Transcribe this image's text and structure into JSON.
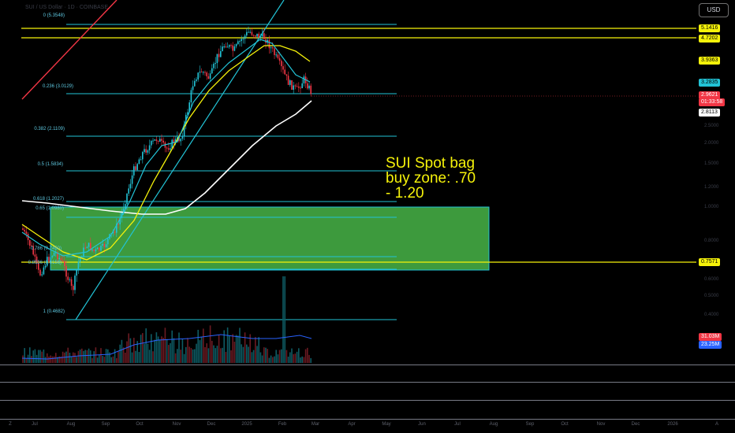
{
  "header": {
    "symbol_line": "SUI / US Dollar · 1D · COINBASE",
    "currency_button": "USD"
  },
  "annotation": {
    "line1": "SUI Spot bag",
    "line2": "buy zone: .70",
    "line3": "- 1.20"
  },
  "fib_labels": [
    {
      "label": "0 (5.3548)",
      "price": 5.3548
    },
    {
      "label": "0.236 (3.0129)",
      "price": 3.0129
    },
    {
      "label": "0.382 (2.1109)",
      "price": 2.1109
    },
    {
      "label": "0.5 (1.5834)",
      "price": 1.5834
    },
    {
      "label": "0.618 (1.2027)",
      "price": 1.2027
    },
    {
      "label": "0.65 (1.0980)",
      "price": 1.098
    },
    {
      "label": "0.786 (0.7450)",
      "price": 0.745
    },
    {
      "label": "0.8536 (0.6156)",
      "price": 0.6156
    },
    {
      "label": "1 (0.4682)",
      "price": 0.4682
    }
  ],
  "price_tags": [
    {
      "value": "5.1416",
      "bg": "#f5f20a",
      "fg": "#000000"
    },
    {
      "value": "4.7202",
      "bg": "#f5f20a",
      "fg": "#000000"
    },
    {
      "value": "3.9363",
      "bg": "#f5f20a",
      "fg": "#000000"
    },
    {
      "value": "3.2835",
      "bg": "#22c3d6",
      "fg": "#000000"
    },
    {
      "value": "2.9621",
      "bg": "#f23645",
      "fg": "#ffffff"
    },
    {
      "value": "01:33:58",
      "bg": "#f23645",
      "fg": "#ffffff"
    },
    {
      "value": "2.8113",
      "bg": "#ffffff",
      "fg": "#000000"
    },
    {
      "value": "0.7571",
      "bg": "#f5f20a",
      "fg": "#000000"
    },
    {
      "value": "31.03M",
      "bg": "#f23645",
      "fg": "#ffffff"
    },
    {
      "value": "23.25M",
      "bg": "#2962ff",
      "fg": "#ffffff"
    }
  ],
  "axis_ticks": [
    "2.5000",
    "2.0000",
    "1.5000",
    "1.2000",
    "1.0000",
    "0.8000",
    "0.6000",
    "0.5000",
    "0.4000"
  ],
  "x_axis": {
    "labels": [
      "Jul",
      "Aug",
      "Sep",
      "Oct",
      "Nov",
      "Dec",
      "2025",
      "Feb",
      "Mar",
      "Apr",
      "May",
      "Jun",
      "Jul",
      "Aug",
      "Sep",
      "Oct",
      "Nov",
      "Dec",
      "2026"
    ],
    "left_icon": "Z",
    "right_icon": "A"
  },
  "colors": {
    "background": "#000000",
    "fib_line": "#22c3d6",
    "zone_fill": "#3d9a3d",
    "yellow_level": "#f5f20a",
    "ema_slow": "#ffffff",
    "ema_mid": "#f5f20a",
    "ema_fast": "#22c3d6",
    "trendline": "#f23645",
    "up_candle": "#22c3d6",
    "down_candle": "#f23645"
  }
}
